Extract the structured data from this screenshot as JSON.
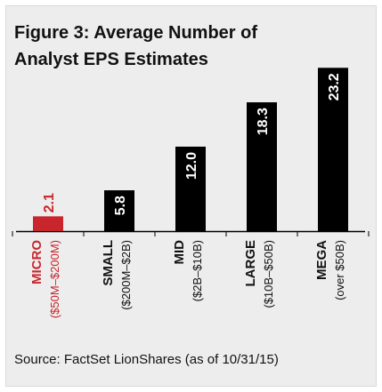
{
  "chart_data": {
    "type": "bar",
    "title": "Figure 3: Average Number of Analyst EPS Estimates",
    "title_lines": [
      "Figure 3: Average Number of",
      "Analyst EPS Estimates"
    ],
    "categories": [
      "MICRO",
      "SMALL",
      "MID",
      "LARGE",
      "MEGA"
    ],
    "category_sublabels": [
      "($50M–$200M)",
      "($200M–$2B)",
      "($2B–$10B)",
      "($10B–$50B)",
      "(over $50B)"
    ],
    "values": [
      2.1,
      5.8,
      12.0,
      18.3,
      23.2
    ],
    "value_labels": [
      "2.1",
      "5.8",
      "12.0",
      "18.3",
      "23.2"
    ],
    "ylim": [
      0,
      24.5
    ],
    "xlabel": "",
    "ylabel": "",
    "grid": false,
    "legend": "none",
    "colors": {
      "highlight": "#c8262c",
      "bar": "#000000",
      "label_default": "#111111"
    },
    "highlight_index": 0,
    "source": "Source: FactSet LionShares (as of 10/31/15)"
  }
}
